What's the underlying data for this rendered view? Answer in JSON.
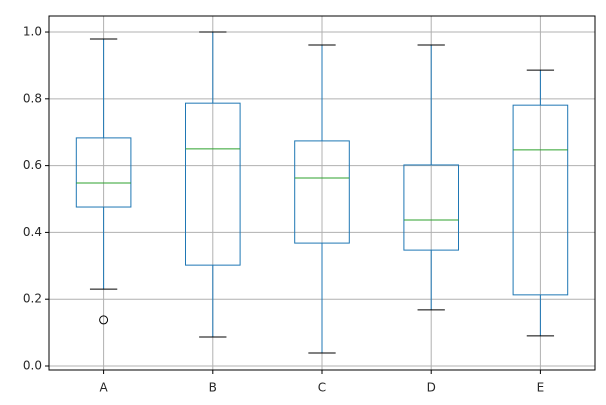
{
  "chart_data": {
    "type": "box",
    "categories": [
      "A",
      "B",
      "C",
      "D",
      "E"
    ],
    "boxes": [
      {
        "whislo": 0.23,
        "q1": 0.476,
        "med": 0.548,
        "q3": 0.683,
        "whishi": 0.979,
        "fliers": [
          0.138
        ]
      },
      {
        "whislo": 0.087,
        "q1": 0.302,
        "med": 0.65,
        "q3": 0.787,
        "whishi": 1.0,
        "fliers": []
      },
      {
        "whislo": 0.039,
        "q1": 0.368,
        "med": 0.563,
        "q3": 0.674,
        "whishi": 0.961,
        "fliers": []
      },
      {
        "whislo": 0.168,
        "q1": 0.347,
        "med": 0.437,
        "q3": 0.602,
        "whishi": 0.961,
        "fliers": []
      },
      {
        "whislo": 0.09,
        "q1": 0.213,
        "med": 0.647,
        "q3": 0.781,
        "whishi": 0.886,
        "fliers": []
      }
    ],
    "box_color": "#1f77b4",
    "median_color": "#2ca02c",
    "cap_color": "#000000",
    "ylim": [
      -0.012,
      1.048
    ],
    "yticks": [
      {
        "value": 0.0,
        "label": "0.0"
      },
      0.2,
      0.4,
      0.6,
      0.8,
      {
        "value": 1.0,
        "label": "1.0"
      }
    ],
    "grid": true
  }
}
